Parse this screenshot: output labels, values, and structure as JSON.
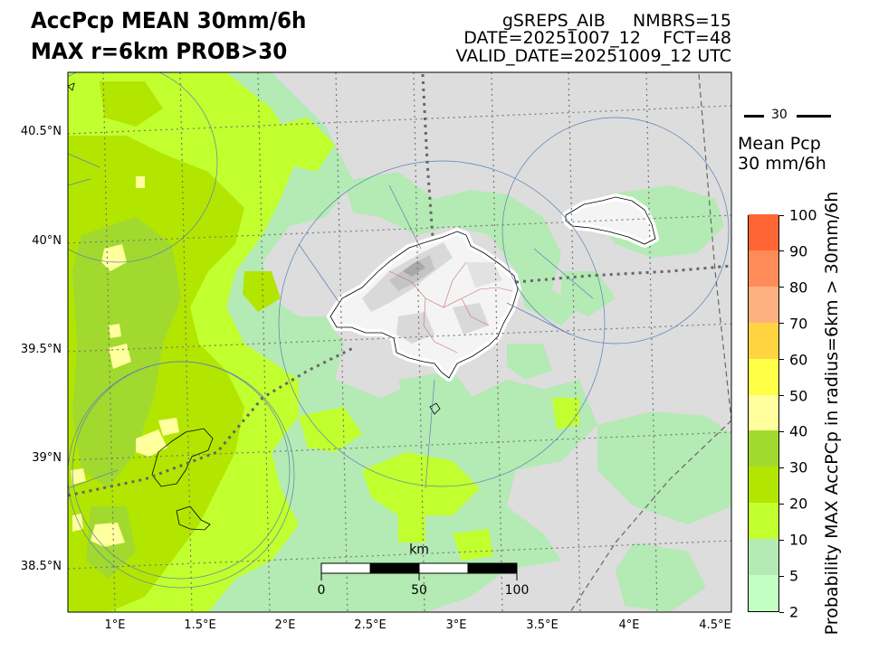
{
  "title": {
    "line1": "AccPcp MEAN 30mm/6h",
    "line2": "MAX r=6km PROB>30"
  },
  "header": {
    "line1": "gSREPS_AIB     NMBRS=15",
    "line2": "DATE=20251007_12    FCT=48",
    "line3": "VALID_DATE=20251009_12 UTC"
  },
  "map": {
    "lat_labels": [
      "40.5°N",
      "40°N",
      "39.5°N",
      "39°N",
      "38.5°N"
    ],
    "lon_labels": [
      "1°E",
      "1.5°E",
      "2°E",
      "2.5°E",
      "3°E",
      "3.5°E",
      "4°E",
      "4.5°E"
    ],
    "background_color": "#dddddd",
    "islands": [
      "Mallorca",
      "Menorca",
      "Ibiza",
      "Formentera",
      "Cabrera"
    ]
  },
  "legend": {
    "contour_value": "30",
    "label_line1": "Mean Pcp",
    "label_line2": "30 mm/6h"
  },
  "colorbar": {
    "title": "Probability MAX AccPCp in radius=6km > 30mm/6h",
    "levels": [
      2,
      5,
      10,
      20,
      30,
      40,
      50,
      60,
      70,
      80,
      90,
      100
    ],
    "tick_labels": [
      "2",
      "5",
      "10",
      "20",
      "30",
      "40",
      "50",
      "60",
      "70",
      "80",
      "90",
      "100"
    ],
    "colors": [
      "#c2ffc2",
      "#b4eab4",
      "#c2ff2e",
      "#b2e600",
      "#a2d92e",
      "#ffff9e",
      "#ffff46",
      "#ffd440",
      "#ffb080",
      "#ff8c58",
      "#ff6633"
    ]
  },
  "scalebar": {
    "unit": "km",
    "labels": [
      "0",
      "50",
      "100"
    ]
  }
}
